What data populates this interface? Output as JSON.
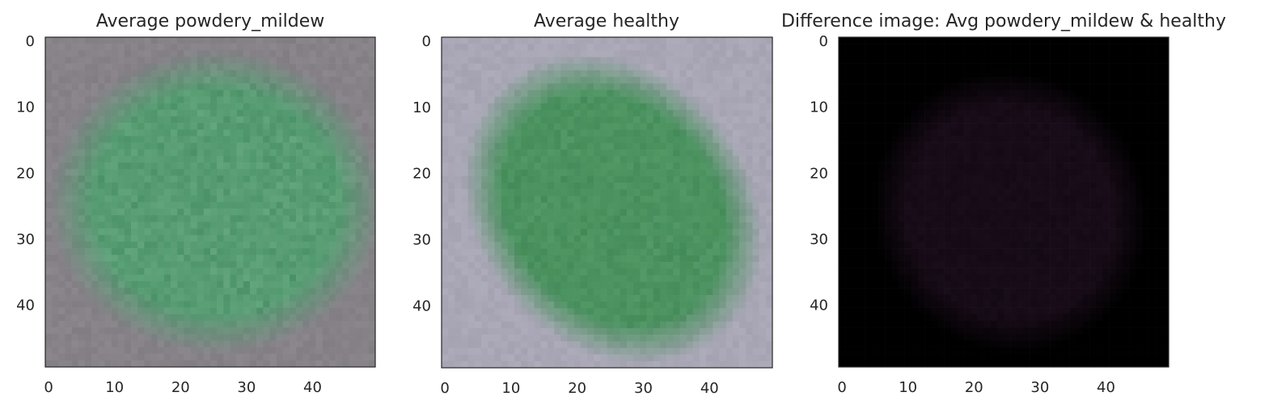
{
  "chart_data": [
    {
      "type": "heatmap",
      "title": "Average powdery_mildew",
      "image_size": [
        50,
        50
      ],
      "x_ticks": [
        0,
        10,
        20,
        30,
        40
      ],
      "y_ticks": [
        0,
        10,
        20,
        30,
        40
      ],
      "xlim": [
        -0.5,
        49.5
      ],
      "ylim": [
        49.5,
        -0.5
      ],
      "grid": false,
      "colors": {
        "background": "#868288",
        "leaf": "#5fa27a",
        "leaf_dark": "#3f8a5e"
      },
      "leaf": {
        "center_x": 25.5,
        "center_y": 24.5,
        "radius_x": 22,
        "radius_y": 20,
        "rotation": 0
      }
    },
    {
      "type": "heatmap",
      "title": "Average healthy",
      "image_size": [
        50,
        50
      ],
      "x_ticks": [
        0,
        10,
        20,
        30,
        40
      ],
      "y_ticks": [
        0,
        10,
        20,
        30,
        40
      ],
      "xlim": [
        -0.5,
        49.5
      ],
      "ylim": [
        49.5,
        -0.5
      ],
      "grid": false,
      "colors": {
        "background": "#a9a7b6",
        "leaf": "#4f9563",
        "leaf_dark": "#3d8753"
      },
      "leaf": {
        "center_x": 25.5,
        "center_y": 25.5,
        "radius_x": 18,
        "radius_y": 22,
        "rotation": -40
      }
    },
    {
      "type": "heatmap",
      "title": "Difference image: Avg powdery_mildew & healthy",
      "image_size": [
        50,
        50
      ],
      "x_ticks": [
        0,
        10,
        20,
        30,
        40
      ],
      "y_ticks": [
        0,
        10,
        20,
        30,
        40
      ],
      "xlim": [
        -0.5,
        49.5
      ],
      "ylim": [
        49.5,
        -0.5
      ],
      "grid": false,
      "colors": {
        "background": "#000000",
        "leaf": "#1a0d1a",
        "leaf_dark": "#0e060e"
      },
      "leaf": {
        "center_x": 25.5,
        "center_y": 26,
        "radius_x": 18,
        "radius_y": 19,
        "rotation": -30
      }
    }
  ]
}
